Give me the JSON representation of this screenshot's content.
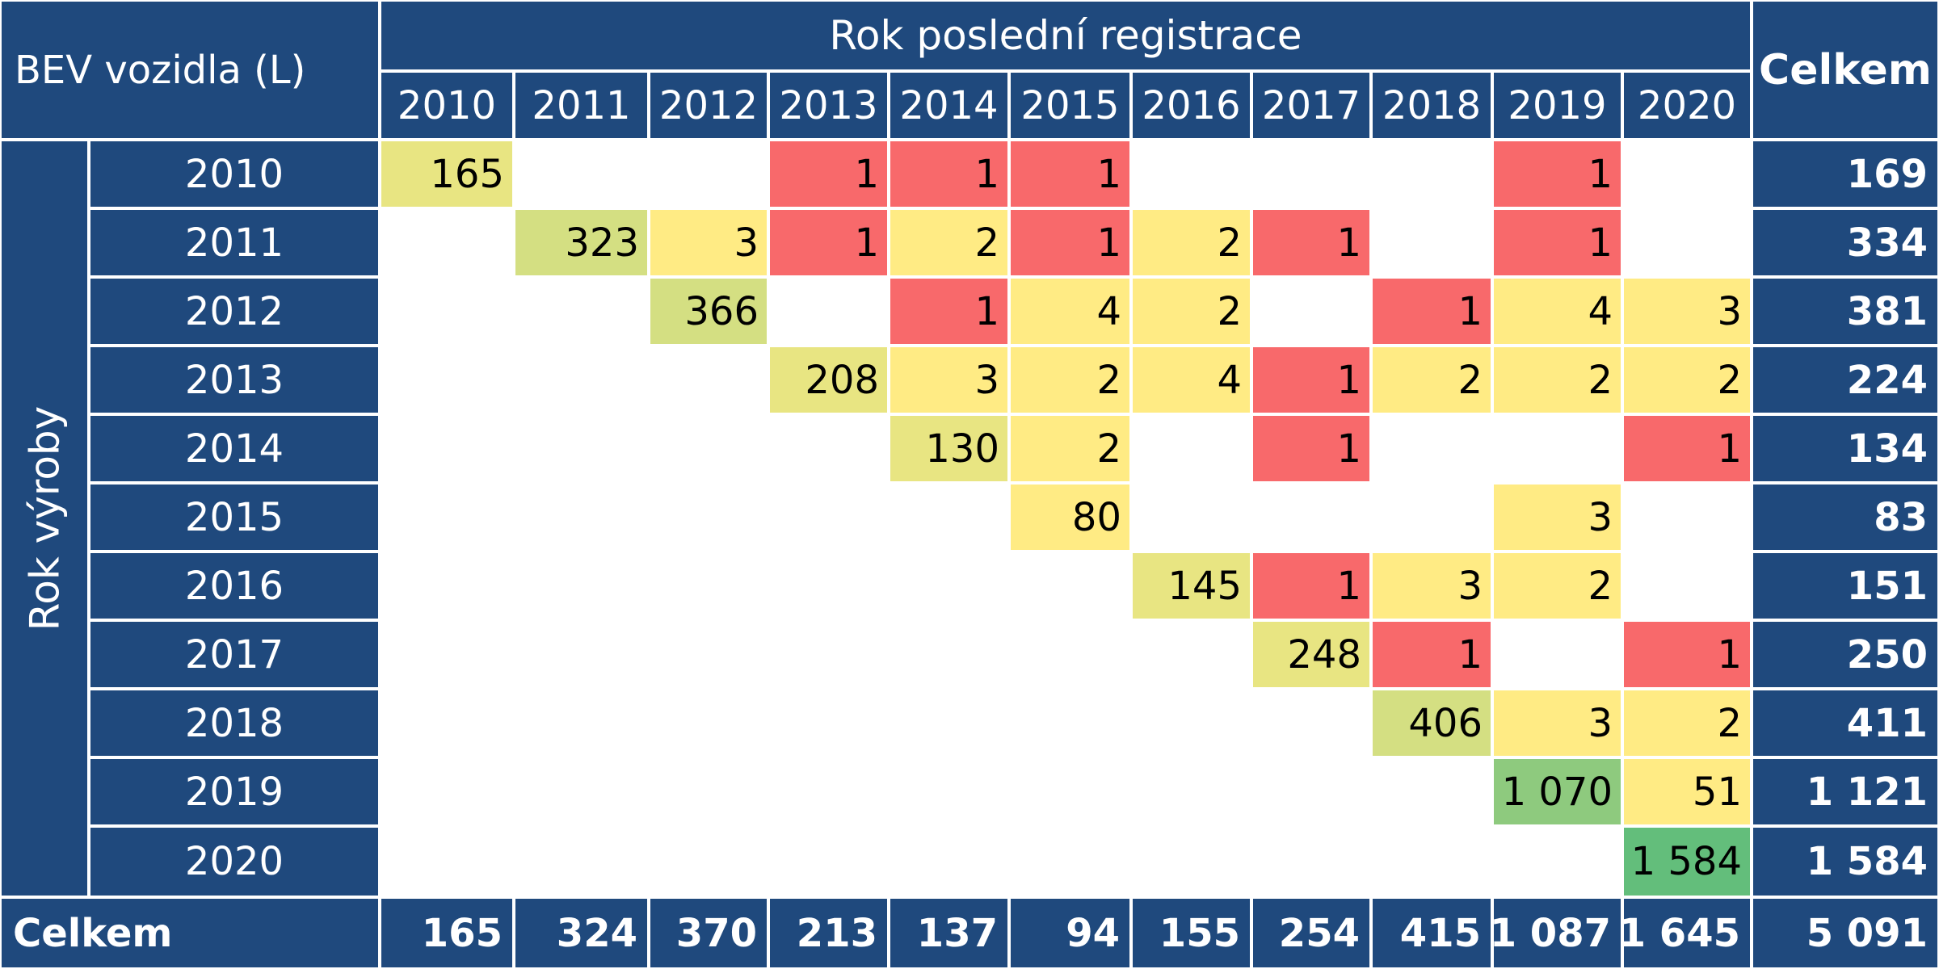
{
  "table": {
    "corner_label": "BEV vozidla (L)",
    "col_group_label": "Rok poslední registrace",
    "row_group_label": "Rok výroby",
    "total_label": "Celkem",
    "col_years": [
      "2010",
      "2011",
      "2012",
      "2013",
      "2014",
      "2015",
      "2016",
      "2017",
      "2018",
      "2019",
      "2020"
    ],
    "row_years": [
      "2010",
      "2011",
      "2012",
      "2013",
      "2014",
      "2015",
      "2016",
      "2017",
      "2018",
      "2019",
      "2020"
    ],
    "cells": [
      [
        "165",
        "",
        "",
        "1",
        "1",
        "1",
        "",
        "",
        "",
        "1",
        ""
      ],
      [
        "",
        "323",
        "3",
        "1",
        "2",
        "1",
        "2",
        "1",
        "",
        "1",
        ""
      ],
      [
        "",
        "",
        "366",
        "",
        "1",
        "4",
        "2",
        "",
        "1",
        "4",
        "3"
      ],
      [
        "",
        "",
        "",
        "208",
        "3",
        "2",
        "4",
        "1",
        "2",
        "2",
        "2"
      ],
      [
        "",
        "",
        "",
        "",
        "130",
        "2",
        "",
        "1",
        "",
        "",
        "1"
      ],
      [
        "",
        "",
        "",
        "",
        "",
        "80",
        "",
        "",
        "",
        "3",
        ""
      ],
      [
        "",
        "",
        "",
        "",
        "",
        "",
        "145",
        "1",
        "3",
        "2",
        ""
      ],
      [
        "",
        "",
        "",
        "",
        "",
        "",
        "",
        "248",
        "1",
        "",
        "1"
      ],
      [
        "",
        "",
        "",
        "",
        "",
        "",
        "",
        "",
        "406",
        "3",
        "2"
      ],
      [
        "",
        "",
        "",
        "",
        "",
        "",
        "",
        "",
        "",
        "1 070",
        "51"
      ],
      [
        "",
        "",
        "",
        "",
        "",
        "",
        "",
        "",
        "",
        "",
        "1 584"
      ]
    ],
    "row_totals": [
      "169",
      "334",
      "381",
      "224",
      "134",
      "83",
      "151",
      "250",
      "411",
      "1 121",
      "1 584"
    ],
    "col_totals": [
      "165",
      "324",
      "370",
      "213",
      "137",
      "94",
      "155",
      "254",
      "415",
      "1 087",
      "1 645"
    ],
    "grand_total": "5 091",
    "colors": {
      "header_bg": "#1F497D",
      "header_text": "#FFFFFF",
      "red": "#F8696B",
      "yellow": "#FFEB84",
      "yellow_green": "#E8E582",
      "light_green": "#D4DF82",
      "green": "#63BE7B",
      "mid_green": "#8ECA7E"
    }
  },
  "chart_data": {
    "type": "heatmap",
    "title": "Rok poslední registrace",
    "xlabel": "Rok poslední registrace",
    "ylabel": "Rok výroby",
    "x": [
      "2010",
      "2011",
      "2012",
      "2013",
      "2014",
      "2015",
      "2016",
      "2017",
      "2018",
      "2019",
      "2020"
    ],
    "y": [
      "2010",
      "2011",
      "2012",
      "2013",
      "2014",
      "2015",
      "2016",
      "2017",
      "2018",
      "2019",
      "2020"
    ],
    "values": [
      [
        165,
        null,
        null,
        1,
        1,
        1,
        null,
        null,
        null,
        1,
        null
      ],
      [
        null,
        323,
        3,
        1,
        2,
        1,
        2,
        1,
        null,
        1,
        null
      ],
      [
        null,
        null,
        366,
        null,
        1,
        4,
        2,
        null,
        1,
        4,
        3
      ],
      [
        null,
        null,
        null,
        208,
        3,
        2,
        4,
        1,
        2,
        2,
        2
      ],
      [
        null,
        null,
        null,
        null,
        130,
        2,
        null,
        1,
        null,
        null,
        1
      ],
      [
        null,
        null,
        null,
        null,
        null,
        80,
        null,
        null,
        null,
        3,
        null
      ],
      [
        null,
        null,
        null,
        null,
        null,
        null,
        145,
        1,
        3,
        2,
        null
      ],
      [
        null,
        null,
        null,
        null,
        null,
        null,
        null,
        248,
        1,
        null,
        1
      ],
      [
        null,
        null,
        null,
        null,
        null,
        null,
        null,
        null,
        406,
        3,
        2
      ],
      [
        null,
        null,
        null,
        null,
        null,
        null,
        null,
        null,
        null,
        1070,
        51
      ],
      [
        null,
        null,
        null,
        null,
        null,
        null,
        null,
        null,
        null,
        null,
        1584
      ]
    ],
    "row_totals": [
      169,
      334,
      381,
      224,
      134,
      83,
      151,
      250,
      411,
      1121,
      1584
    ],
    "col_totals": [
      165,
      324,
      370,
      213,
      137,
      94,
      155,
      254,
      415,
      1087,
      1645
    ],
    "grand_total": 5091
  }
}
